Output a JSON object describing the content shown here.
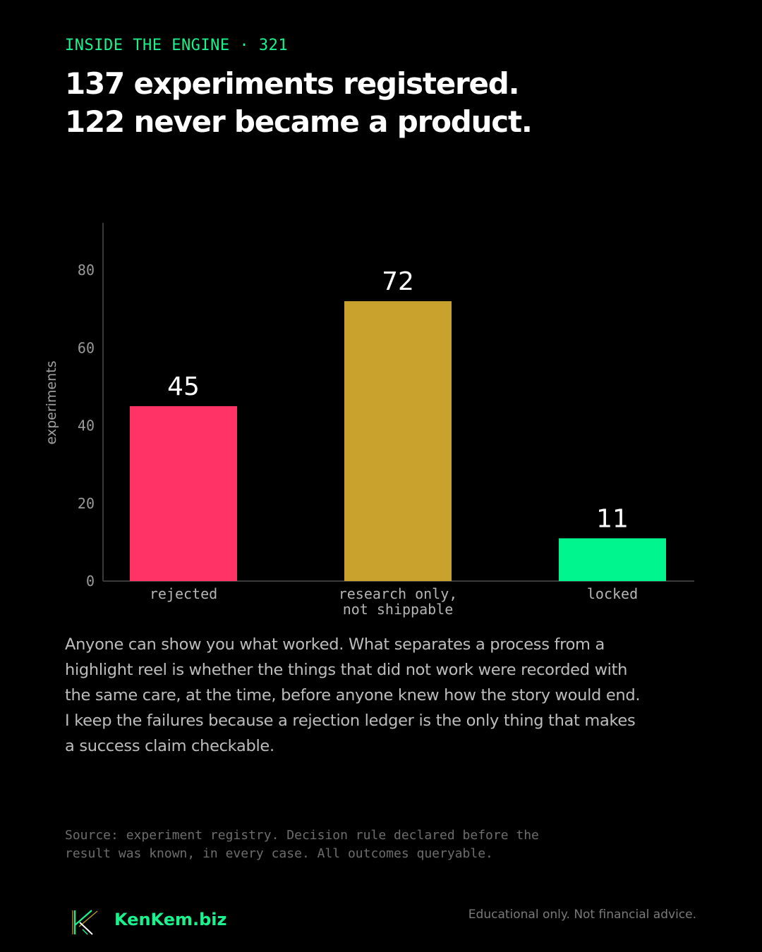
{
  "header": {
    "kicker": "INSIDE THE ENGINE · 321",
    "headline_line1": "137 experiments registered.",
    "headline_line2": "122 never became a product."
  },
  "chart_data": {
    "type": "bar",
    "categories": [
      [
        "rejected"
      ],
      [
        "research only,",
        "not shippable"
      ],
      [
        "locked"
      ]
    ],
    "values": [
      45,
      72,
      11
    ],
    "data_labels": [
      "45",
      "72",
      "11"
    ],
    "colors": [
      "#ff3366",
      "#c9a22e",
      "#00f58f"
    ],
    "ylabel": "experiments",
    "yticks": [
      0,
      20,
      40,
      60,
      80
    ],
    "ylim": [
      0,
      92
    ],
    "grid": false,
    "legend": "none"
  },
  "body": {
    "text": "Anyone can show you what worked. What separates a process from a highlight reel is whether the things that did not work were recorded with the same care, at the time, before anyone knew how the story would end. I keep the failures because a rejection ledger is the only thing that makes a success claim checkable."
  },
  "source": {
    "line1": "Source: experiment registry. Decision rule declared before the",
    "line2": "result was known, in every case. All outcomes queryable."
  },
  "footer": {
    "logo_icon": "kenkem-k-logo-icon",
    "brand": "KenKem.biz",
    "disclaimer": "Educational only. Not financial advice."
  },
  "colors": {
    "background": "#000000",
    "accent": "#19f28f"
  }
}
